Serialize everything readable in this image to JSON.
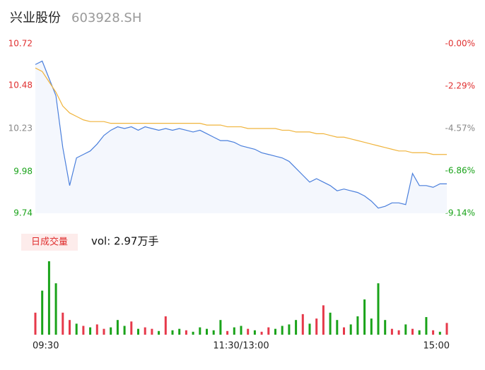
{
  "chart_data": {
    "type": "intraday",
    "title": "兴业股份",
    "subtitle": "603928.SH",
    "volume_label": "日成交量",
    "volume_text": "vol: 2.97万手",
    "x": [
      0,
      4,
      8,
      12,
      16,
      20,
      24,
      28,
      32,
      36,
      40,
      44,
      48,
      52,
      56,
      60,
      64,
      68,
      72,
      76,
      80,
      84,
      88,
      92,
      96,
      100,
      104,
      108,
      112,
      116,
      120,
      124,
      128,
      132,
      136,
      140,
      144,
      148,
      152,
      156,
      160,
      164,
      168,
      172,
      176,
      180,
      184,
      188,
      192,
      196,
      200,
      204,
      208,
      212,
      216,
      220,
      224,
      228,
      232,
      236,
      240
    ],
    "xlim": [
      0,
      240
    ],
    "xticks": [
      {
        "value": 0,
        "label": "09:30"
      },
      {
        "value": 120,
        "label": "11:30/13:00"
      },
      {
        "value": 240,
        "label": "15:00"
      }
    ],
    "series": [
      {
        "name": "price",
        "color": "#4a7fdc",
        "values": [
          10.6,
          10.62,
          10.52,
          10.42,
          10.12,
          9.9,
          10.06,
          10.08,
          10.1,
          10.14,
          10.19,
          10.22,
          10.24,
          10.23,
          10.24,
          10.22,
          10.24,
          10.23,
          10.22,
          10.23,
          10.22,
          10.23,
          10.22,
          10.21,
          10.22,
          10.2,
          10.18,
          10.16,
          10.16,
          10.15,
          10.13,
          10.12,
          10.11,
          10.09,
          10.08,
          10.07,
          10.06,
          10.04,
          10.0,
          9.96,
          9.92,
          9.94,
          9.92,
          9.9,
          9.87,
          9.88,
          9.87,
          9.86,
          9.84,
          9.81,
          9.77,
          9.78,
          9.8,
          9.8,
          9.79,
          9.97,
          9.9,
          9.9,
          9.89,
          9.91,
          9.91
        ]
      },
      {
        "name": "average",
        "color": "#f0b43c",
        "values": [
          10.58,
          10.56,
          10.5,
          10.44,
          10.36,
          10.32,
          10.3,
          10.28,
          10.27,
          10.27,
          10.27,
          10.26,
          10.26,
          10.26,
          10.26,
          10.26,
          10.26,
          10.26,
          10.26,
          10.26,
          10.26,
          10.26,
          10.26,
          10.26,
          10.26,
          10.25,
          10.25,
          10.25,
          10.24,
          10.24,
          10.24,
          10.23,
          10.23,
          10.23,
          10.23,
          10.23,
          10.22,
          10.22,
          10.21,
          10.21,
          10.21,
          10.2,
          10.2,
          10.19,
          10.18,
          10.18,
          10.17,
          10.16,
          10.15,
          10.14,
          10.13,
          10.12,
          10.11,
          10.1,
          10.1,
          10.09,
          10.09,
          10.09,
          10.08,
          10.08,
          10.08
        ]
      }
    ],
    "ylim": [
      9.74,
      10.72
    ],
    "yticks": [
      10.72,
      10.48,
      10.23,
      9.98,
      9.74
    ],
    "ytick_colors": [
      "#e03030",
      "#e03030",
      "#888888",
      "#1aa31a",
      "#1aa31a"
    ],
    "y2lim": [
      -9.14,
      0
    ],
    "y2ticks": [
      {
        "value": 0,
        "label": "-0.00%"
      },
      {
        "value": -2.29,
        "label": "-2.29%"
      },
      {
        "value": -4.57,
        "label": "-4.57%"
      },
      {
        "value": -6.86,
        "label": "-6.86%"
      },
      {
        "value": -9.14,
        "label": "-9.14%"
      }
    ],
    "volume": {
      "ylim": [
        0,
        100
      ],
      "values": [
        30,
        60,
        100,
        70,
        30,
        20,
        15,
        12,
        10,
        14,
        8,
        10,
        20,
        12,
        18,
        8,
        10,
        8,
        5,
        25,
        6,
        8,
        6,
        4,
        10,
        8,
        6,
        20,
        5,
        10,
        12,
        8,
        6,
        4,
        10,
        8,
        12,
        14,
        20,
        28,
        15,
        22,
        40,
        30,
        20,
        10,
        14,
        25,
        48,
        22,
        70,
        20,
        8,
        6,
        14,
        8,
        6,
        24,
        6,
        4,
        16
      ],
      "colors": [
        "#e6394a",
        "#1aa31a",
        "#1aa31a",
        "#1aa31a",
        "#e6394a",
        "#e6394a",
        "#1aa31a",
        "#e6394a",
        "#1aa31a",
        "#e6394a",
        "#e6394a",
        "#1aa31a",
        "#1aa31a",
        "#1aa31a",
        "#e6394a",
        "#1aa31a",
        "#e6394a",
        "#e6394a",
        "#1aa31a",
        "#e6394a",
        "#1aa31a",
        "#1aa31a",
        "#e6394a",
        "#1aa31a",
        "#1aa31a",
        "#1aa31a",
        "#1aa31a",
        "#1aa31a",
        "#e6394a",
        "#1aa31a",
        "#1aa31a",
        "#e6394a",
        "#1aa31a",
        "#e6394a",
        "#e6394a",
        "#1aa31a",
        "#1aa31a",
        "#1aa31a",
        "#1aa31a",
        "#e6394a",
        "#1aa31a",
        "#e6394a",
        "#e6394a",
        "#1aa31a",
        "#1aa31a",
        "#e6394a",
        "#1aa31a",
        "#1aa31a",
        "#1aa31a",
        "#1aa31a",
        "#1aa31a",
        "#1aa31a",
        "#e6394a",
        "#e6394a",
        "#1aa31a",
        "#e6394a",
        "#1aa31a",
        "#1aa31a",
        "#e6394a",
        "#1aa31a",
        "#e6394a"
      ]
    }
  }
}
